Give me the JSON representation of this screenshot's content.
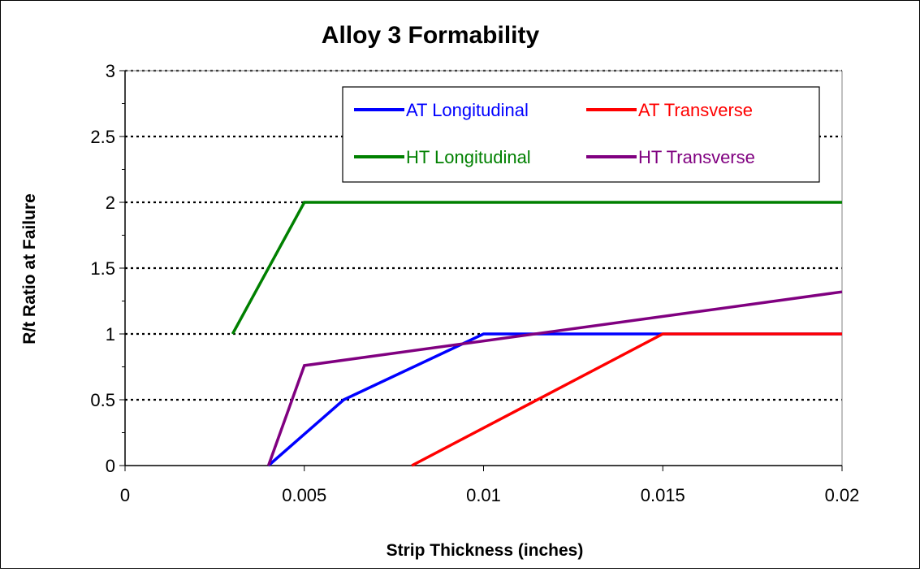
{
  "chart_data": {
    "type": "line",
    "title": "Alloy 3 Formability",
    "xlabel": "Strip Thickness (inches)",
    "ylabel": "R/t Ratio at Failure",
    "xlim": [
      0,
      0.02
    ],
    "ylim": [
      0,
      3
    ],
    "x_ticks": [
      "0",
      "0.005",
      "0.01",
      "0.015",
      "0.02"
    ],
    "y_ticks": [
      "0",
      "0.5",
      "1",
      "1.5",
      "2",
      "2.5",
      "3"
    ],
    "grid": "horizontal-dotted",
    "legend_position": "top-right",
    "series": [
      {
        "name": "AT Longitudinal",
        "color": "#0000ff",
        "points": [
          [
            0.004,
            0
          ],
          [
            0.0061,
            0.5
          ],
          [
            0.01,
            1
          ],
          [
            0.015,
            1
          ],
          [
            0.02,
            1
          ]
        ]
      },
      {
        "name": "AT Transverse",
        "color": "#ff0000",
        "points": [
          [
            0.008,
            0
          ],
          [
            0.015,
            1
          ],
          [
            0.02,
            1
          ]
        ]
      },
      {
        "name": "HT Longitudinal",
        "color": "#008000",
        "points": [
          [
            0.003,
            1
          ],
          [
            0.005,
            2
          ],
          [
            0.02,
            2
          ]
        ]
      },
      {
        "name": "HT Transverse",
        "color": "#800080",
        "points": [
          [
            0.004,
            0
          ],
          [
            0.005,
            0.76
          ],
          [
            0.02,
            1.32
          ]
        ]
      }
    ]
  }
}
